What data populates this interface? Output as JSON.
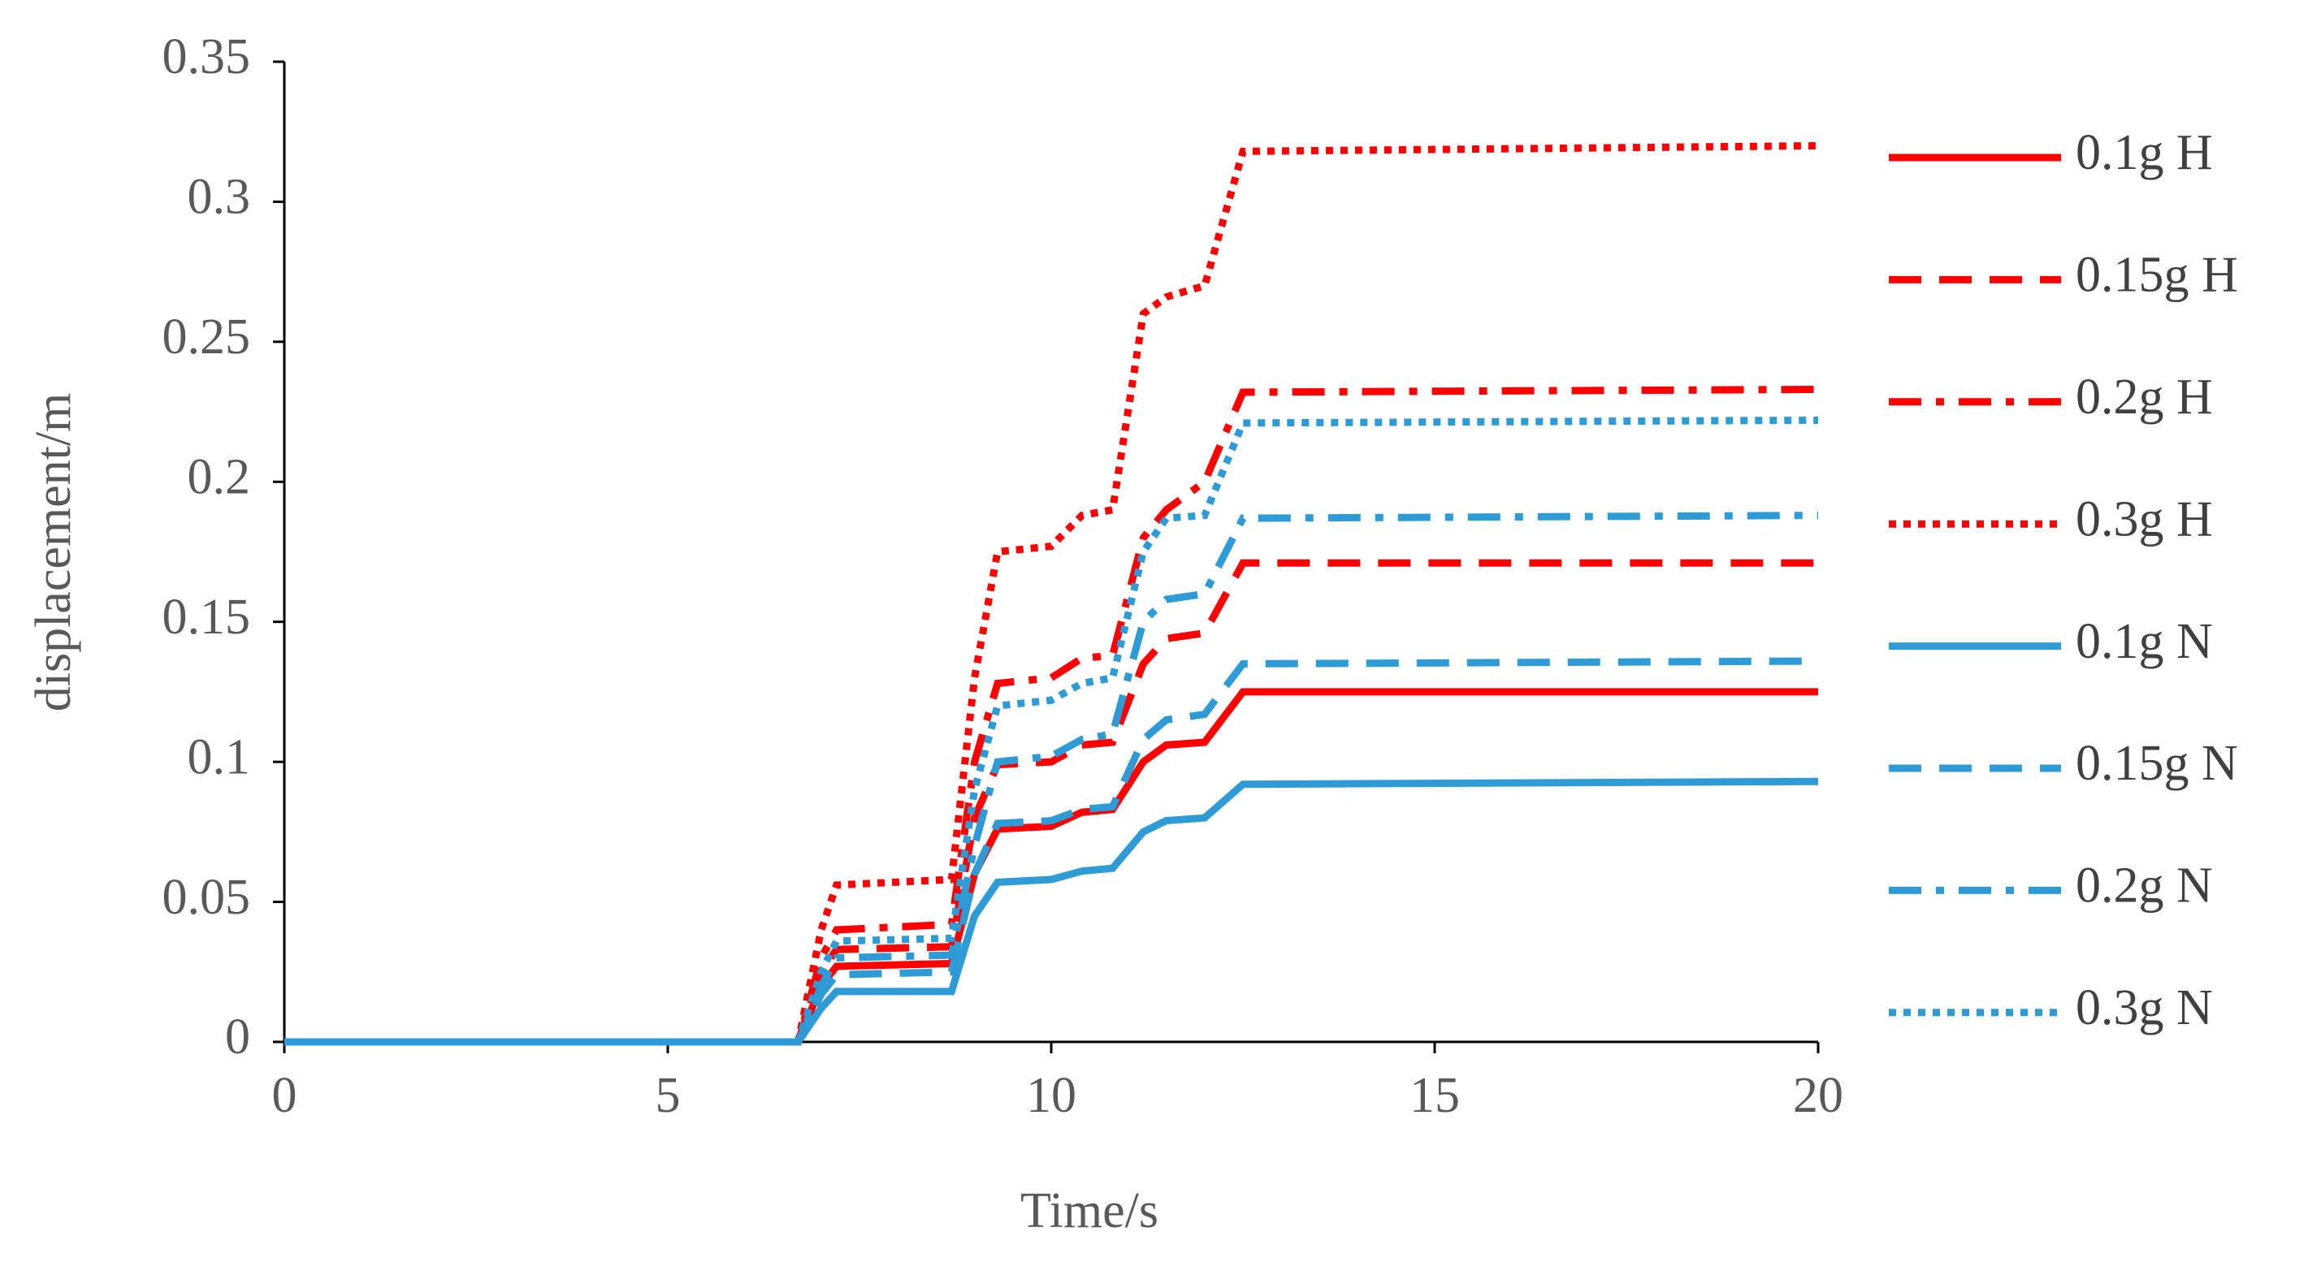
{
  "chart_data": {
    "type": "line",
    "x_label": "Time/s",
    "y_label": "displacement/m",
    "x": [
      0,
      6.7,
      7.0,
      7.2,
      8.7,
      9.0,
      9.3,
      10.0,
      10.4,
      10.8,
      11.2,
      11.5,
      12.0,
      12.5,
      20
    ],
    "series": [
      {
        "name": "0.1g H",
        "color": "#ff0000",
        "dash": "solid",
        "values": [
          0,
          0,
          0.02,
          0.027,
          0.028,
          0.06,
          0.076,
          0.077,
          0.082,
          0.083,
          0.1,
          0.106,
          0.107,
          0.125,
          0.125
        ]
      },
      {
        "name": "0.15g H",
        "color": "#ff0000",
        "dash": "dash",
        "values": [
          0,
          0,
          0.025,
          0.033,
          0.034,
          0.08,
          0.099,
          0.1,
          0.106,
          0.107,
          0.135,
          0.144,
          0.146,
          0.171,
          0.171
        ]
      },
      {
        "name": "0.2g H",
        "color": "#ff0000",
        "dash": "dashdot",
        "values": [
          0,
          0,
          0.03,
          0.04,
          0.042,
          0.1,
          0.128,
          0.13,
          0.137,
          0.138,
          0.18,
          0.19,
          0.2,
          0.232,
          0.233
        ]
      },
      {
        "name": "0.3g H",
        "color": "#ff0000",
        "dash": "dot",
        "values": [
          0,
          0,
          0.04,
          0.056,
          0.058,
          0.13,
          0.175,
          0.177,
          0.188,
          0.19,
          0.26,
          0.266,
          0.27,
          0.318,
          0.32
        ]
      },
      {
        "name": "0.1g N",
        "color": "#2e9bd6",
        "dash": "solid",
        "values": [
          0,
          0,
          0.012,
          0.018,
          0.018,
          0.045,
          0.057,
          0.058,
          0.061,
          0.062,
          0.075,
          0.079,
          0.08,
          0.092,
          0.093
        ]
      },
      {
        "name": "0.15g N",
        "color": "#2e9bd6",
        "dash": "dash",
        "values": [
          0,
          0,
          0.017,
          0.024,
          0.025,
          0.06,
          0.078,
          0.079,
          0.083,
          0.084,
          0.108,
          0.115,
          0.117,
          0.135,
          0.136
        ]
      },
      {
        "name": "0.2g N",
        "color": "#2e9bd6",
        "dash": "dashdot",
        "values": [
          0,
          0,
          0.02,
          0.03,
          0.031,
          0.07,
          0.1,
          0.102,
          0.108,
          0.11,
          0.15,
          0.158,
          0.16,
          0.187,
          0.188
        ]
      },
      {
        "name": "0.3g N",
        "color": "#2e9bd6",
        "dash": "dot",
        "values": [
          0,
          0,
          0.025,
          0.036,
          0.037,
          0.09,
          0.12,
          0.122,
          0.128,
          0.13,
          0.175,
          0.187,
          0.188,
          0.221,
          0.222
        ]
      }
    ],
    "xlim": [
      0,
      20
    ],
    "xticks": [
      0,
      5,
      10,
      15,
      20
    ],
    "ylim": [
      0,
      0.35
    ],
    "yticks": [
      0,
      0.05,
      0.1,
      0.15,
      0.2,
      0.25,
      0.3,
      0.35
    ],
    "grid": false,
    "legend": "right"
  }
}
